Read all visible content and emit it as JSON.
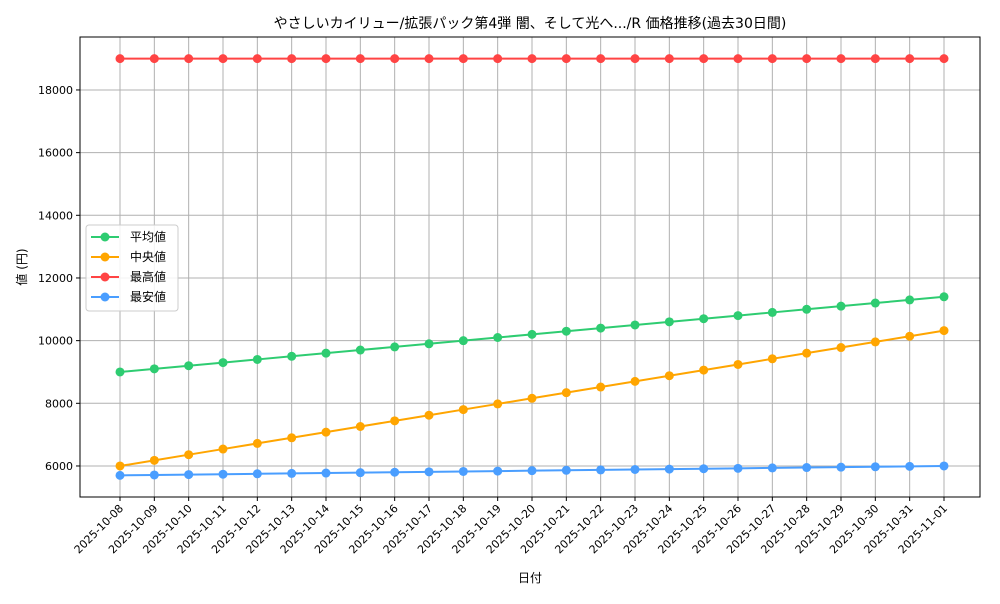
{
  "chart_data": {
    "type": "line",
    "title": "やさしいカイリュー/拡張パック第4弾 闇、そして光へ.../R 価格推移(過去30日間)",
    "xlabel": "日付",
    "ylabel": "値 (円)",
    "ylim": [
      5010,
      19690
    ],
    "yticks": [
      6000,
      8000,
      10000,
      12000,
      14000,
      16000,
      18000
    ],
    "grid": true,
    "legend_position": "center-left",
    "x": [
      "2025-10-08",
      "2025-10-09",
      "2025-10-10",
      "2025-10-11",
      "2025-10-12",
      "2025-10-13",
      "2025-10-14",
      "2025-10-15",
      "2025-10-16",
      "2025-10-17",
      "2025-10-18",
      "2025-10-19",
      "2025-10-20",
      "2025-10-21",
      "2025-10-22",
      "2025-10-23",
      "2025-10-24",
      "2025-10-25",
      "2025-10-26",
      "2025-10-27",
      "2025-10-28",
      "2025-10-29",
      "2025-10-30",
      "2025-10-31",
      "2025-11-01"
    ],
    "series": [
      {
        "name": "平均値",
        "color": "#2ecc71",
        "values": [
          9000,
          9100,
          9200,
          9300,
          9400,
          9500,
          9600,
          9700,
          9800,
          9900,
          10000,
          10100,
          10200,
          10300,
          10400,
          10500,
          10600,
          10700,
          10800,
          10900,
          11000,
          11100,
          11200,
          11300,
          11400
        ]
      },
      {
        "name": "中央値",
        "color": "#ffa500",
        "values": [
          6000,
          6180,
          6360,
          6540,
          6720,
          6900,
          7080,
          7260,
          7440,
          7620,
          7800,
          7980,
          8160,
          8340,
          8520,
          8700,
          8880,
          9060,
          9240,
          9420,
          9600,
          9780,
          9960,
          10140,
          10320
        ]
      },
      {
        "name": "最高値",
        "color": "#ff4444",
        "values": [
          19000,
          19000,
          19000,
          19000,
          19000,
          19000,
          19000,
          19000,
          19000,
          19000,
          19000,
          19000,
          19000,
          19000,
          19000,
          19000,
          19000,
          19000,
          19000,
          19000,
          19000,
          19000,
          19000,
          19000,
          19000
        ]
      },
      {
        "name": "最安値",
        "color": "#4a9eff",
        "values": [
          5700,
          5712.5,
          5725,
          5737.5,
          5750,
          5762.5,
          5775,
          5787.5,
          5800,
          5812.5,
          5825,
          5837.5,
          5850,
          5862.5,
          5875,
          5887.5,
          5900,
          5912.5,
          5925,
          5937.5,
          5950,
          5962.5,
          5975,
          5987.5,
          6000
        ]
      }
    ]
  }
}
